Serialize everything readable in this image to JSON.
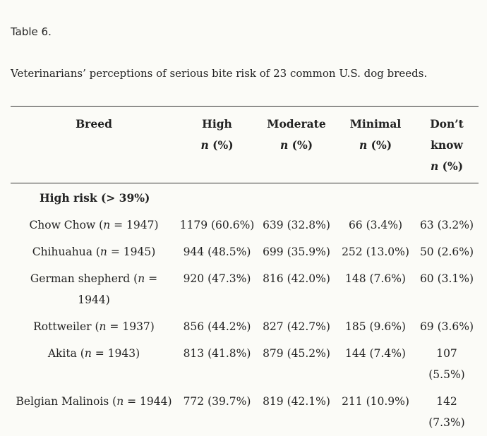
{
  "caption": {
    "label": "Table 6.",
    "title": "Veterinarians’ perceptions of serious bite risk of 23 common U.S. dog breeds."
  },
  "header": {
    "breed": "Breed",
    "high": "High",
    "moderate": "Moderate",
    "minimal": "Minimal",
    "dont_know_line1": "Don’t",
    "dont_know_line2": "know",
    "n_symbol": "n",
    "pct_suffix": " (%)"
  },
  "group": {
    "label": "High risk (> 39%)"
  },
  "rows": [
    {
      "breed": "Chow Chow (",
      "n": "n",
      "count": " = 1947)",
      "high": "1179 (60.6%)",
      "moderate": "639 (32.8%)",
      "minimal": "66 (3.4%)",
      "dont_know": "63 (3.2%)"
    },
    {
      "breed": "Chihuahua (",
      "n": "n",
      "count": " = 1945)",
      "high": "944 (48.5%)",
      "moderate": "699 (35.9%)",
      "minimal": "252 (13.0%)",
      "dont_know": "50 (2.6%)"
    },
    {
      "breed": "German shepherd (",
      "n": "n",
      "count": " = 1944)",
      "high": "920 (47.3%)",
      "moderate": "816 (42.0%)",
      "minimal": "148 (7.6%)",
      "dont_know": "60 (3.1%)"
    },
    {
      "breed": "Rottweiler (",
      "n": "n",
      "count": " = 1937)",
      "high": "856 (44.2%)",
      "moderate": "827 (42.7%)",
      "minimal": "185 (9.6%)",
      "dont_know": "69 (3.6%)"
    },
    {
      "breed": "Akita (",
      "n": "n",
      "count": " = 1943)",
      "high": "813 (41.8%)",
      "moderate": "879 (45.2%)",
      "minimal": "144 (7.4%)",
      "dont_know": "107 (5.5%)"
    },
    {
      "breed": "Belgian Malinois (",
      "n": "n",
      "count": " = 1944)",
      "high": "772 (39.7%)",
      "moderate": "819 (42.1%)",
      "minimal": "211 (10.9%)",
      "dont_know": "142 (7.3%)"
    }
  ]
}
